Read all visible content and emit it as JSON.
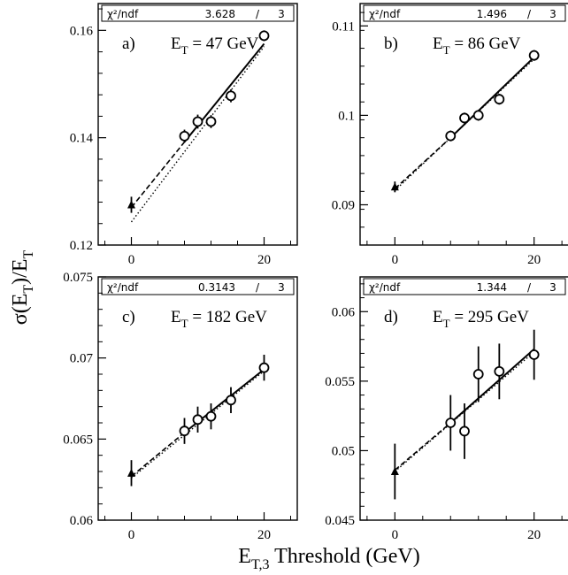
{
  "figure": {
    "xlabel_main": "E",
    "xlabel_sub": "T,3",
    "xlabel_rest": " Threshold (GeV)",
    "ylabel_main": "σ(E",
    "ylabel_sub": "T",
    "ylabel_rest": ")/E",
    "ylabel_sub2": "T"
  },
  "chart_data": [
    {
      "type": "scatter",
      "letter": "a)",
      "et_label": "E",
      "et_sub": "T",
      "et_value": " =   47 GeV",
      "chi2_label": "χ²/ndf",
      "chi2_value": "3.628",
      "slash": "/",
      "ndf": "3",
      "xlim": [
        -5,
        25
      ],
      "ylim": [
        0.12,
        0.165
      ],
      "xticks": [
        0,
        20
      ],
      "xtick_labels": [
        "0",
        "20"
      ],
      "yticks": [
        0.12,
        0.14,
        0.16
      ],
      "ytick_labels": [
        "0.12",
        "0.14",
        "0.16"
      ],
      "triangle": {
        "x": 0,
        "y": 0.1275,
        "err": 0.0015
      },
      "points": [
        {
          "x": 8,
          "y": 0.1403,
          "err": 0.0012
        },
        {
          "x": 10,
          "y": 0.143,
          "err": 0.0013
        },
        {
          "x": 12,
          "y": 0.143,
          "err": 0.0012
        },
        {
          "x": 15,
          "y": 0.1478,
          "err": 0.0012
        },
        {
          "x": 20,
          "y": 0.159,
          "err": 0.001
        }
      ],
      "fit_solid": [
        [
          8,
          0.1392
        ],
        [
          20,
          0.1575
        ]
      ],
      "fit_dashed": [
        [
          0,
          0.127
        ],
        [
          8,
          0.1392
        ]
      ],
      "fit_dotted": [
        [
          0,
          0.1243
        ],
        [
          20,
          0.157
        ]
      ]
    },
    {
      "type": "scatter",
      "letter": "b)",
      "et_label": "E",
      "et_sub": "T",
      "et_value": " =   86 GeV",
      "chi2_label": "χ²/ndf",
      "chi2_value": "1.496",
      "slash": "/",
      "ndf": "3",
      "xlim": [
        -5,
        25
      ],
      "ylim": [
        0.0855,
        0.1125
      ],
      "xticks": [
        0,
        20
      ],
      "xtick_labels": [
        "0",
        "20"
      ],
      "yticks": [
        0.09,
        0.1,
        0.11
      ],
      "ytick_labels": [
        "0.09",
        "0.1",
        "0.11"
      ],
      "triangle": {
        "x": 0,
        "y": 0.092,
        "err": 0.0006
      },
      "points": [
        {
          "x": 8,
          "y": 0.0977,
          "err": 0.0006
        },
        {
          "x": 10,
          "y": 0.0997,
          "err": 0.0006
        },
        {
          "x": 12,
          "y": 0.1,
          "err": 0.0006
        },
        {
          "x": 15,
          "y": 0.1018,
          "err": 0.0006
        },
        {
          "x": 20,
          "y": 0.1067,
          "err": 0.0006
        }
      ],
      "fit_solid": [
        [
          8,
          0.0975
        ],
        [
          20,
          0.1065
        ]
      ],
      "fit_dashed": [
        [
          0,
          0.0918
        ],
        [
          8,
          0.0975
        ]
      ],
      "fit_dotted": [
        [
          0,
          0.0916
        ],
        [
          20,
          0.1063
        ]
      ]
    },
    {
      "type": "scatter",
      "letter": "c)",
      "et_label": "E",
      "et_sub": "T",
      "et_value": " =  182 GeV",
      "chi2_label": "χ²/ndf",
      "chi2_value": "0.3143",
      "slash": "/",
      "ndf": "3",
      "xlim": [
        -5,
        25
      ],
      "ylim": [
        0.06,
        0.075
      ],
      "xticks": [
        0,
        20
      ],
      "xtick_labels": [
        "0",
        "20"
      ],
      "yticks": [
        0.06,
        0.065,
        0.07,
        0.075
      ],
      "ytick_labels": [
        "0.06",
        "0.065",
        "0.07",
        "0.075"
      ],
      "triangle": {
        "x": 0,
        "y": 0.0629,
        "err": 0.0008
      },
      "points": [
        {
          "x": 8,
          "y": 0.0655,
          "err": 0.0008
        },
        {
          "x": 10,
          "y": 0.0662,
          "err": 0.0008
        },
        {
          "x": 12,
          "y": 0.0664,
          "err": 0.0008
        },
        {
          "x": 15,
          "y": 0.0674,
          "err": 0.0008
        },
        {
          "x": 20,
          "y": 0.0694,
          "err": 0.0008
        }
      ],
      "fit_solid": [
        [
          8,
          0.0654
        ],
        [
          20,
          0.0693
        ]
      ],
      "fit_dashed": [
        [
          0,
          0.0627
        ],
        [
          8,
          0.0654
        ]
      ],
      "fit_dotted": [
        [
          0,
          0.0626
        ],
        [
          20,
          0.0692
        ]
      ]
    },
    {
      "type": "scatter",
      "letter": "d)",
      "et_label": "E",
      "et_sub": "T",
      "et_value": " =  295 GeV",
      "chi2_label": "χ²/ndf",
      "chi2_value": "1.344",
      "slash": "/",
      "ndf": "3",
      "xlim": [
        -5,
        25
      ],
      "ylim": [
        0.045,
        0.0625
      ],
      "xticks": [
        0,
        20
      ],
      "xtick_labels": [
        "0",
        "20"
      ],
      "yticks": [
        0.045,
        0.05,
        0.055,
        0.06
      ],
      "ytick_labels": [
        "0.045",
        "0.05",
        "0.055",
        "0.06"
      ],
      "triangle": {
        "x": 0,
        "y": 0.0485,
        "err": 0.002
      },
      "points": [
        {
          "x": 8,
          "y": 0.052,
          "err": 0.002
        },
        {
          "x": 10,
          "y": 0.0514,
          "err": 0.002
        },
        {
          "x": 12,
          "y": 0.0555,
          "err": 0.002
        },
        {
          "x": 15,
          "y": 0.0557,
          "err": 0.002
        },
        {
          "x": 20,
          "y": 0.0569,
          "err": 0.0018
        }
      ],
      "fit_solid": [
        [
          8,
          0.052
        ],
        [
          20,
          0.0573
        ]
      ],
      "fit_dashed": [
        [
          0,
          0.0486
        ],
        [
          8,
          0.052
        ]
      ],
      "fit_dotted": [
        [
          0,
          0.0485
        ],
        [
          20,
          0.0571
        ]
      ]
    }
  ]
}
